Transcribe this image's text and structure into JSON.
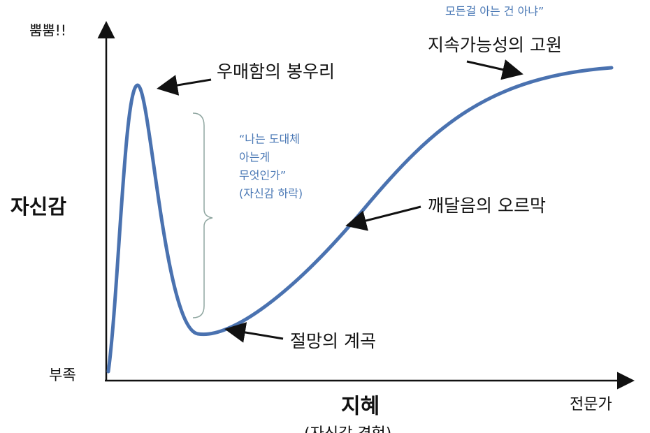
{
  "axes": {
    "y_top": "뿜뿜!!",
    "y_title": "자신감",
    "y_bottom": "부족",
    "x_title": "지혜",
    "x_subtitle": "(자신감 경험)",
    "x_right": "전문가"
  },
  "stages": {
    "peak": "우매함의 봉우리",
    "valley": "절망의 계곡",
    "slope": "깨달음의 오르막",
    "plateau": "지속가능성의 고원"
  },
  "quotes": {
    "decline": [
      "“나는 도대체",
      "아는게",
      "무엇인가”",
      "(자신감 하락)"
    ],
    "plateau": [
      "모든걸 아는 건 아냐”"
    ]
  }
}
